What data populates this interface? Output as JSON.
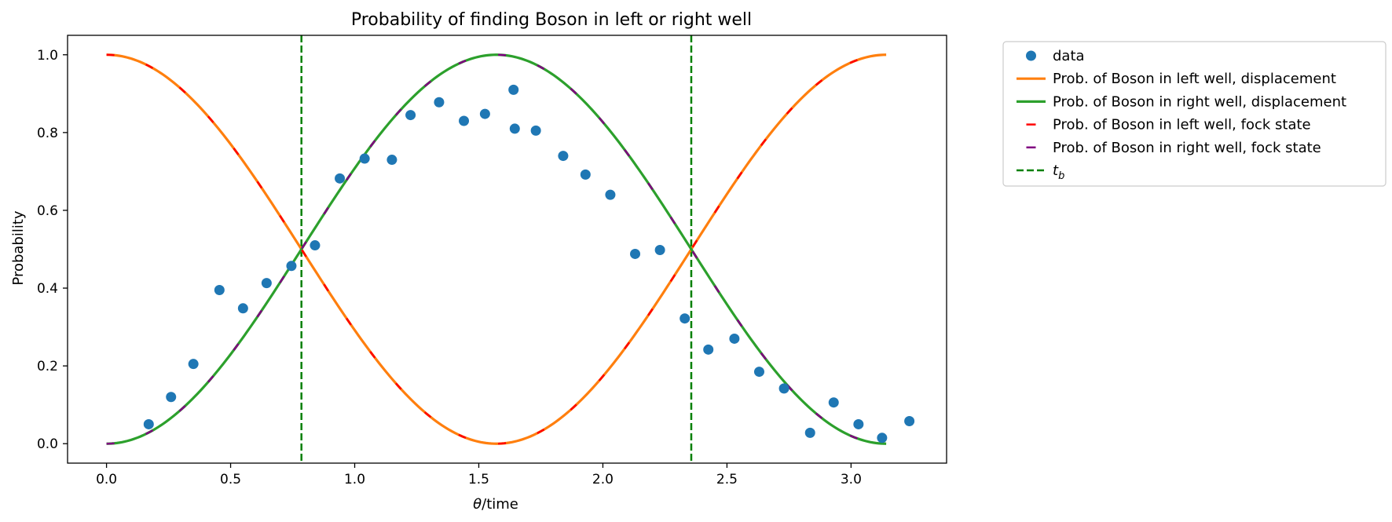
{
  "chart_data": {
    "type": "line",
    "title": "Probability of finding Boson in left or right well",
    "xlabel_var": "θ",
    "xlabel_rest": "/time",
    "ylabel": "Probability",
    "xlim": [
      -0.157,
      3.385
    ],
    "ylim": [
      -0.05,
      1.05
    ],
    "x_ticks": [
      0.0,
      0.5,
      1.0,
      1.5,
      2.0,
      2.5,
      3.0
    ],
    "x_tick_labels": [
      "0.0",
      "0.5",
      "1.0",
      "1.5",
      "2.0",
      "2.5",
      "3.0"
    ],
    "y_ticks": [
      0.0,
      0.2,
      0.4,
      0.6,
      0.8,
      1.0
    ],
    "y_tick_labels": [
      "0.0",
      "0.2",
      "0.4",
      "0.6",
      "0.8",
      "1.0"
    ],
    "grid": false,
    "legend_placement": "outside-upper-right",
    "theta_range": [
      0,
      3.1416
    ],
    "scatter": {
      "label": "data",
      "color": "#1f77b4",
      "points": [
        [
          0.17,
          0.05
        ],
        [
          0.26,
          0.12
        ],
        [
          0.35,
          0.205
        ],
        [
          0.455,
          0.395
        ],
        [
          0.55,
          0.348
        ],
        [
          0.645,
          0.413
        ],
        [
          0.745,
          0.457
        ],
        [
          0.84,
          0.51
        ],
        [
          0.94,
          0.682
        ],
        [
          1.04,
          0.733
        ],
        [
          1.15,
          0.73
        ],
        [
          1.225,
          0.845
        ],
        [
          1.34,
          0.878
        ],
        [
          1.44,
          0.83
        ],
        [
          1.525,
          0.848
        ],
        [
          1.64,
          0.91
        ],
        [
          1.645,
          0.81
        ],
        [
          1.73,
          0.805
        ],
        [
          1.84,
          0.74
        ],
        [
          1.93,
          0.692
        ],
        [
          2.03,
          0.64
        ],
        [
          2.13,
          0.488
        ],
        [
          2.23,
          0.498
        ],
        [
          2.33,
          0.322
        ],
        [
          2.425,
          0.242
        ],
        [
          2.53,
          0.27
        ],
        [
          2.63,
          0.185
        ],
        [
          2.73,
          0.142
        ],
        [
          2.835,
          0.028
        ],
        [
          2.93,
          0.106
        ],
        [
          3.03,
          0.05
        ],
        [
          3.125,
          0.015
        ],
        [
          3.235,
          0.058
        ]
      ]
    },
    "series": [
      {
        "name": "Prob. of Boson in left well, displacement",
        "func": "cos2",
        "color": "#ff7f0e",
        "style": "solid"
      },
      {
        "name": "Prob. of Boson in right well, displacement",
        "func": "sin2",
        "color": "#2ca02c",
        "style": "solid"
      },
      {
        "name": "Prob. of Boson in left well, fock state",
        "func": "cos2",
        "color": "#ff0000",
        "style": "dashed"
      },
      {
        "name": "Prob. of Boson in right well, fock state",
        "func": "sin2",
        "color": "#800080",
        "style": "dashed"
      }
    ],
    "vlines": {
      "label_main": "t",
      "label_sub": "b",
      "color": "#008000",
      "x": [
        0.7854,
        2.3562
      ]
    }
  }
}
